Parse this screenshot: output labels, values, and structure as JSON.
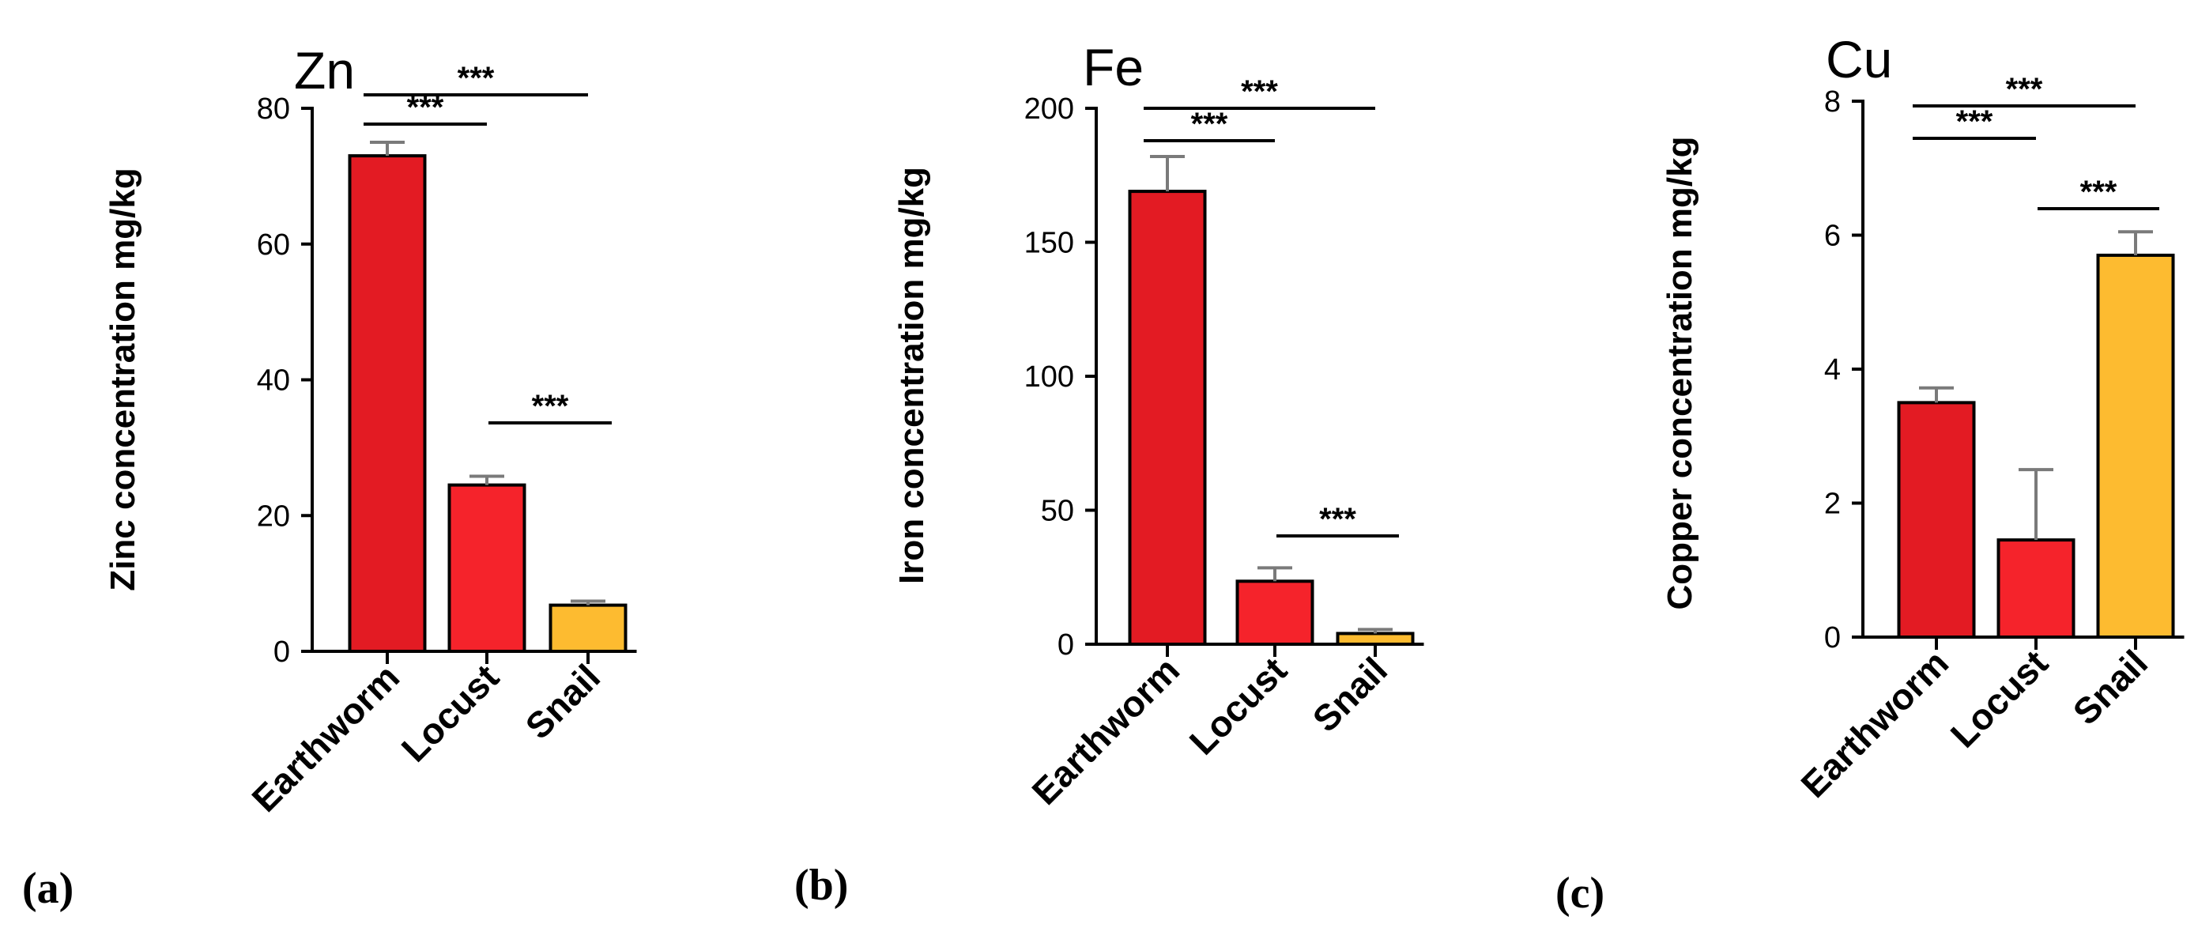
{
  "chart_data": [
    {
      "type": "bar",
      "panel": "(a)",
      "title": "Zn",
      "ylabel": "Zinc concentration mg/kg",
      "xlabel": "",
      "ylim": [
        0,
        80
      ],
      "yticks": [
        0,
        20,
        40,
        60,
        80
      ],
      "categories": [
        "Earthworm",
        "Locust",
        "Snail"
      ],
      "values": [
        73,
        24.5,
        6.8
      ],
      "errors": [
        2,
        1.3,
        0.6
      ],
      "colors": [
        "#e31b23",
        "#f5232b",
        "#fdbb30"
      ],
      "significance": [
        {
          "from": 0,
          "to": 1,
          "label": "***"
        },
        {
          "from": 0,
          "to": 2,
          "label": "***"
        },
        {
          "from": 1,
          "to": 2,
          "label": "***"
        }
      ]
    },
    {
      "type": "bar",
      "panel": "(b)",
      "title": "Fe",
      "ylabel": "Iron concentration mg/kg",
      "xlabel": "",
      "ylim": [
        0,
        200
      ],
      "yticks": [
        0,
        50,
        100,
        150,
        200
      ],
      "categories": [
        "Earthworm",
        "Locust",
        "Snail"
      ],
      "values": [
        169,
        23.5,
        4
      ],
      "errors": [
        13,
        5,
        1.5
      ],
      "colors": [
        "#e31b23",
        "#f5232b",
        "#fdbb30"
      ],
      "significance": [
        {
          "from": 0,
          "to": 1,
          "label": "***"
        },
        {
          "from": 0,
          "to": 2,
          "label": "***"
        },
        {
          "from": 1,
          "to": 2,
          "label": "***"
        }
      ]
    },
    {
      "type": "bar",
      "panel": "(c)",
      "title": "Cu",
      "ylabel": "Copper concentration mg/kg",
      "xlabel": "",
      "ylim": [
        0,
        8
      ],
      "yticks": [
        0,
        2,
        4,
        6,
        8
      ],
      "categories": [
        "Earthworm",
        "Locust",
        "Snail"
      ],
      "values": [
        3.5,
        1.45,
        5.7
      ],
      "errors": [
        0.22,
        1.05,
        0.35
      ],
      "colors": [
        "#e31b23",
        "#f5232b",
        "#fdbb30"
      ],
      "significance": [
        {
          "from": 0,
          "to": 1,
          "label": "***"
        },
        {
          "from": 0,
          "to": 2,
          "label": "***"
        },
        {
          "from": 1,
          "to": 2,
          "label": "***"
        }
      ]
    }
  ]
}
